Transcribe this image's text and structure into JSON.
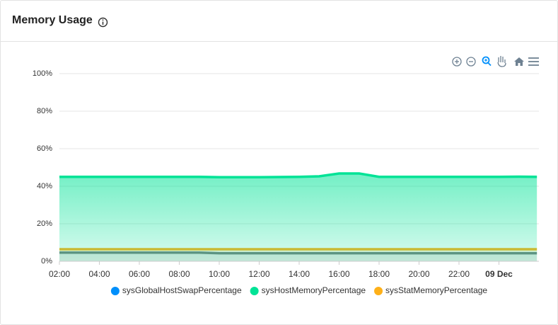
{
  "header": {
    "title": "Memory Usage"
  },
  "chart_data": {
    "type": "area",
    "x": [
      2,
      3,
      4,
      5,
      6,
      7,
      8,
      9,
      10,
      11,
      12,
      13,
      14,
      15,
      16,
      17,
      18,
      19,
      20,
      21,
      22,
      23,
      24,
      25,
      25.9
    ],
    "xlim": [
      2,
      26
    ],
    "xticks": [
      {
        "value": 2,
        "label": "02:00"
      },
      {
        "value": 4,
        "label": "04:00"
      },
      {
        "value": 6,
        "label": "06:00"
      },
      {
        "value": 8,
        "label": "08:00"
      },
      {
        "value": 10,
        "label": "10:00"
      },
      {
        "value": 12,
        "label": "12:00"
      },
      {
        "value": 14,
        "label": "14:00"
      },
      {
        "value": 16,
        "label": "16:00"
      },
      {
        "value": 18,
        "label": "18:00"
      },
      {
        "value": 20,
        "label": "20:00"
      },
      {
        "value": 22,
        "label": "22:00"
      },
      {
        "value": 24,
        "label": "09 Dec"
      }
    ],
    "ylim": [
      0,
      100
    ],
    "yticks": [
      {
        "value": 0,
        "label": "0%"
      },
      {
        "value": 20,
        "label": "20%"
      },
      {
        "value": 40,
        "label": "40%"
      },
      {
        "value": 60,
        "label": "60%"
      },
      {
        "value": 80,
        "label": "80%"
      },
      {
        "value": 100,
        "label": "100%"
      }
    ],
    "grid": true,
    "series": [
      {
        "name": "sysGlobalHostSwapPercentage",
        "color": "#008ffb",
        "values": [
          4.6,
          4.6,
          4.6,
          4.6,
          4.6,
          4.6,
          4.6,
          4.6,
          4.3,
          4.3,
          4.3,
          4.3,
          4.3,
          4.3,
          4.3,
          4.3,
          4.3,
          4.3,
          4.3,
          4.3,
          4.3,
          4.3,
          4.3,
          4.3,
          4.3
        ]
      },
      {
        "name": "sysHostMemoryPercentage",
        "color": "#00e396",
        "values": [
          45,
          45,
          45,
          45,
          45,
          45,
          45,
          45,
          44.8,
          44.8,
          44.8,
          44.9,
          45,
          45.3,
          46.8,
          46.8,
          45,
          45,
          45,
          45,
          45,
          45,
          45,
          45.1,
          45
        ]
      },
      {
        "name": "sysStatMemoryPercentage",
        "color": "#feb019",
        "values": [
          6.4,
          6.4,
          6.4,
          6.4,
          6.4,
          6.4,
          6.4,
          6.4,
          6.4,
          6.4,
          6.4,
          6.4,
          6.4,
          6.4,
          6.4,
          6.4,
          6.4,
          6.4,
          6.4,
          6.4,
          6.4,
          6.4,
          6.4,
          6.4,
          6.4
        ]
      }
    ]
  }
}
